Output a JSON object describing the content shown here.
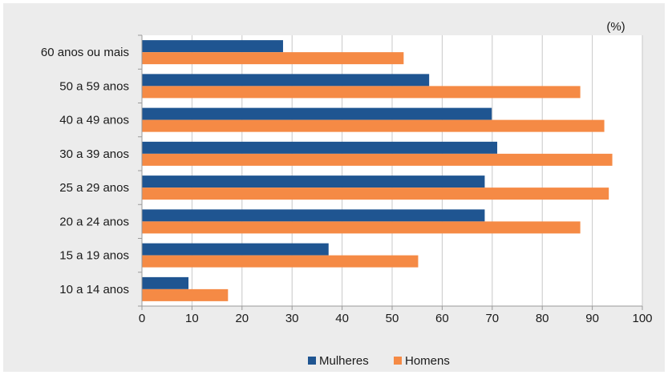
{
  "chart_data": {
    "type": "bar",
    "orientation": "horizontal",
    "unit_label": "(%)",
    "categories": [
      "60 anos ou mais",
      "50 a 59 anos",
      "40 a 49 anos",
      "30 a 39 anos",
      "25 a 29 anos",
      "20 a 24 anos",
      "15 a 19 anos",
      "10 a 14 anos"
    ],
    "series": [
      {
        "name": "Mulheres",
        "color": "#1f5591",
        "values": [
          28.2,
          57.4,
          69.9,
          71.0,
          68.5,
          68.5,
          37.3,
          9.3
        ]
      },
      {
        "name": "Homens",
        "color": "#f58a45",
        "values": [
          52.3,
          87.6,
          92.4,
          94.0,
          93.3,
          87.6,
          55.2,
          17.2
        ]
      }
    ],
    "xlim": [
      0,
      100
    ],
    "xticks": [
      "0",
      "10",
      "20",
      "30",
      "40",
      "50",
      "60",
      "70",
      "80",
      "90",
      "100"
    ],
    "grid": true,
    "legend_position": "bottom-center"
  }
}
